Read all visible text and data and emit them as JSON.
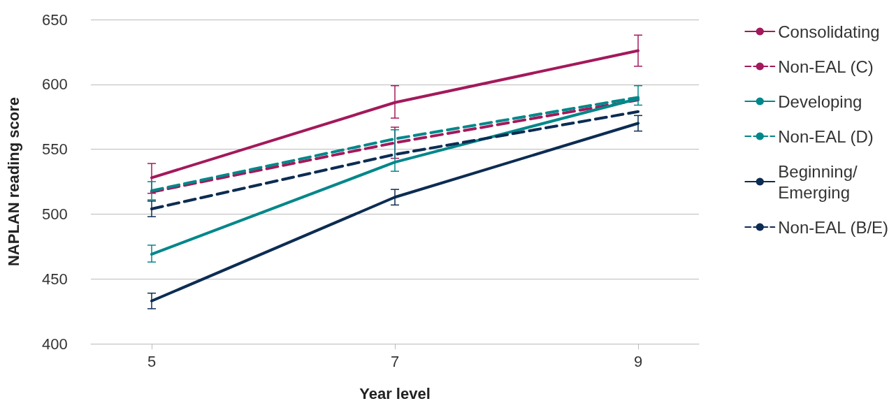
{
  "chart_data": {
    "type": "line",
    "xlabel": "Year level",
    "ylabel": "NAPLAN reading score",
    "x": [
      5,
      7,
      9
    ],
    "xlim": [
      4.5,
      9.5
    ],
    "xticks": [
      5,
      7,
      9
    ],
    "ylim": [
      400,
      650
    ],
    "yticks": [
      400,
      450,
      500,
      550,
      600,
      650
    ],
    "grid": "y",
    "legend": "top right",
    "marker": "none",
    "series": [
      {
        "name": "Consolidating",
        "color": "#a3195b",
        "line_style": "solid",
        "values": [
          528,
          586,
          626
        ],
        "errors": [
          [
            516,
            539
          ],
          [
            574,
            599
          ],
          [
            614,
            638
          ]
        ]
      },
      {
        "name": "Non-EAL (C)",
        "color": "#a3195b",
        "line_style": "dashed",
        "values": [
          517,
          555,
          588
        ],
        "errors": [
          null,
          [
            543,
            567
          ],
          null
        ]
      },
      {
        "name": "Developing",
        "color": "#00878a",
        "line_style": "solid",
        "values": [
          469,
          540,
          589
        ],
        "errors": [
          [
            463,
            476
          ],
          [
            533,
            565
          ],
          [
            584,
            599
          ]
        ]
      },
      {
        "name": "Non-EAL (D)",
        "color": "#00878a",
        "line_style": "dashed",
        "values": [
          518,
          558,
          590
        ],
        "errors": [
          [
            511,
            525
          ],
          null,
          null
        ]
      },
      {
        "name": "Beginning/\nEmerging",
        "color": "#0c2c52",
        "line_style": "solid",
        "values": [
          433,
          513,
          570
        ],
        "errors": [
          [
            427,
            439
          ],
          [
            507,
            519
          ],
          [
            564,
            576
          ]
        ]
      },
      {
        "name": "Non-EAL (B/E)",
        "color": "#0c2c52",
        "line_style": "dashed",
        "values": [
          504,
          546,
          579
        ],
        "errors": [
          [
            498,
            510
          ],
          null,
          null
        ]
      }
    ]
  }
}
